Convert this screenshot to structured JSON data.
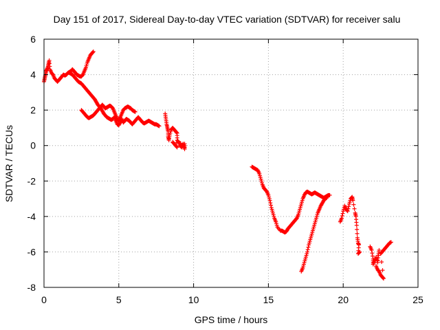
{
  "chart_data": {
    "type": "scatter",
    "title": "Day 151 of 2017, Sidereal Day-to-day VTEC variation (SDTVAR) for receiver salu",
    "xlabel": "GPS time / hours",
    "ylabel": "SDTVAR / TECUs",
    "xlim": [
      0,
      25
    ],
    "ylim": [
      -8,
      6
    ],
    "xticks": [
      0,
      5,
      10,
      15,
      20,
      25
    ],
    "yticks": [
      -8,
      -6,
      -4,
      -2,
      0,
      2,
      4,
      6
    ],
    "grid": true,
    "marker": "+",
    "color": "#ff0000",
    "series": [
      {
        "segments": [
          [
            [
              0.0,
              3.6
            ],
            [
              0.05,
              3.8
            ],
            [
              0.1,
              4.0
            ],
            [
              0.15,
              4.2
            ],
            [
              0.2,
              4.3
            ],
            [
              0.25,
              4.4
            ],
            [
              0.3,
              4.6
            ],
            [
              0.35,
              4.8
            ],
            [
              0.4,
              4.3
            ],
            [
              0.5,
              4.1
            ],
            [
              0.6,
              4.0
            ],
            [
              0.7,
              3.8
            ],
            [
              0.8,
              3.7
            ],
            [
              0.9,
              3.6
            ],
            [
              1.0,
              3.7
            ],
            [
              1.1,
              3.8
            ],
            [
              1.2,
              3.9
            ],
            [
              1.3,
              4.0
            ],
            [
              1.4,
              3.95
            ],
            [
              1.5,
              4.0
            ],
            [
              1.6,
              4.1
            ],
            [
              1.7,
              4.15
            ],
            [
              1.8,
              4.2
            ],
            [
              1.9,
              4.3
            ],
            [
              2.0,
              4.2
            ],
            [
              2.1,
              4.1
            ],
            [
              2.2,
              4.0
            ],
            [
              2.3,
              3.95
            ],
            [
              2.4,
              3.9
            ],
            [
              2.5,
              3.9
            ],
            [
              2.6,
              4.0
            ],
            [
              2.7,
              4.2
            ],
            [
              2.8,
              4.4
            ],
            [
              2.9,
              4.7
            ],
            [
              3.0,
              4.9
            ],
            [
              3.1,
              5.1
            ],
            [
              3.2,
              5.2
            ],
            [
              3.3,
              5.3
            ]
          ],
          [
            [
              1.7,
              4.1
            ],
            [
              1.8,
              4.05
            ],
            [
              1.9,
              4.0
            ],
            [
              2.0,
              3.9
            ],
            [
              2.1,
              3.8
            ],
            [
              2.2,
              3.7
            ],
            [
              2.3,
              3.6
            ],
            [
              2.4,
              3.55
            ],
            [
              2.5,
              3.5
            ],
            [
              2.6,
              3.4
            ],
            [
              2.7,
              3.3
            ],
            [
              2.8,
              3.2
            ],
            [
              2.9,
              3.1
            ],
            [
              3.0,
              3.0
            ],
            [
              3.1,
              2.9
            ],
            [
              3.2,
              2.8
            ],
            [
              3.3,
              2.7
            ],
            [
              3.4,
              2.6
            ],
            [
              3.5,
              2.45
            ],
            [
              3.6,
              2.3
            ],
            [
              3.7,
              2.2
            ],
            [
              3.8,
              2.1
            ],
            [
              3.9,
              1.95
            ],
            [
              4.0,
              1.8
            ],
            [
              4.1,
              1.7
            ],
            [
              4.2,
              1.6
            ],
            [
              4.3,
              1.55
            ],
            [
              4.4,
              1.5
            ],
            [
              4.5,
              1.45
            ],
            [
              4.6,
              1.5
            ],
            [
              4.7,
              1.6
            ],
            [
              4.8,
              1.4
            ],
            [
              4.9,
              1.2
            ],
            [
              5.0,
              1.15
            ],
            [
              5.1,
              1.3
            ],
            [
              5.2,
              1.5
            ],
            [
              5.3,
              1.3
            ],
            [
              5.4,
              1.4
            ],
            [
              5.5,
              1.5
            ],
            [
              5.6,
              1.45
            ],
            [
              5.7,
              1.4
            ],
            [
              5.8,
              1.3
            ],
            [
              5.9,
              1.2
            ],
            [
              6.0,
              1.3
            ],
            [
              6.1,
              1.4
            ],
            [
              6.2,
              1.5
            ],
            [
              6.3,
              1.6
            ],
            [
              6.4,
              1.5
            ],
            [
              6.5,
              1.4
            ],
            [
              6.6,
              1.3
            ],
            [
              6.7,
              1.25
            ],
            [
              6.8,
              1.3
            ],
            [
              6.9,
              1.35
            ],
            [
              7.0,
              1.4
            ],
            [
              7.1,
              1.35
            ],
            [
              7.2,
              1.3
            ],
            [
              7.3,
              1.25
            ],
            [
              7.4,
              1.2
            ],
            [
              7.5,
              1.2
            ],
            [
              7.6,
              1.15
            ],
            [
              7.7,
              1.1
            ]
          ],
          [
            [
              2.5,
              2.0
            ],
            [
              2.6,
              1.9
            ],
            [
              2.7,
              1.8
            ],
            [
              2.8,
              1.7
            ],
            [
              2.9,
              1.6
            ],
            [
              3.0,
              1.55
            ],
            [
              3.1,
              1.6
            ],
            [
              3.2,
              1.65
            ],
            [
              3.3,
              1.7
            ],
            [
              3.4,
              1.8
            ],
            [
              3.5,
              1.9
            ],
            [
              3.6,
              2.0
            ],
            [
              3.7,
              2.1
            ],
            [
              3.8,
              2.2
            ],
            [
              3.9,
              2.3
            ],
            [
              4.0,
              2.2
            ],
            [
              4.1,
              2.1
            ],
            [
              4.2,
              2.15
            ],
            [
              4.3,
              2.2
            ],
            [
              4.4,
              2.25
            ],
            [
              4.5,
              2.2
            ],
            [
              4.6,
              2.1
            ],
            [
              4.7,
              1.9
            ],
            [
              4.8,
              1.7
            ],
            [
              4.9,
              1.5
            ],
            [
              5.0,
              1.4
            ],
            [
              5.1,
              1.6
            ],
            [
              5.2,
              1.8
            ],
            [
              5.3,
              2.0
            ],
            [
              5.4,
              2.1
            ],
            [
              5.5,
              2.15
            ],
            [
              5.6,
              2.2
            ],
            [
              5.7,
              2.15
            ],
            [
              5.8,
              2.1
            ],
            [
              5.9,
              2.0
            ],
            [
              6.0,
              1.95
            ],
            [
              6.1,
              1.9
            ]
          ],
          [
            [
              8.1,
              1.8
            ],
            [
              8.15,
              1.5
            ],
            [
              8.2,
              1.2
            ],
            [
              8.25,
              1.0
            ],
            [
              8.3,
              0.8
            ],
            [
              8.3,
              0.5
            ],
            [
              8.35,
              0.3
            ],
            [
              8.4,
              0.6
            ],
            [
              8.5,
              0.9
            ],
            [
              8.6,
              1.0
            ],
            [
              8.7,
              0.9
            ],
            [
              8.8,
              0.8
            ],
            [
              8.9,
              0.7
            ],
            [
              8.9,
              0.3
            ],
            [
              9.0,
              0.2
            ],
            [
              9.1,
              0.0
            ],
            [
              9.2,
              -0.1
            ],
            [
              9.3,
              0.1
            ],
            [
              9.35,
              0.0
            ],
            [
              9.4,
              -0.2
            ],
            [
              9.4,
              0.1
            ],
            [
              8.6,
              0.2
            ],
            [
              8.7,
              0.1
            ],
            [
              8.8,
              0.0
            ],
            [
              8.9,
              -0.1
            ]
          ],
          [
            [
              13.9,
              -1.2
            ],
            [
              14.0,
              -1.25
            ],
            [
              14.1,
              -1.3
            ],
            [
              14.2,
              -1.35
            ],
            [
              14.3,
              -1.4
            ],
            [
              14.4,
              -1.6
            ],
            [
              14.5,
              -1.9
            ],
            [
              14.6,
              -2.2
            ],
            [
              14.7,
              -2.4
            ],
            [
              14.8,
              -2.5
            ],
            [
              14.9,
              -2.6
            ],
            [
              15.0,
              -2.8
            ],
            [
              15.1,
              -3.1
            ],
            [
              15.2,
              -3.5
            ],
            [
              15.3,
              -3.8
            ],
            [
              15.4,
              -4.1
            ],
            [
              15.5,
              -4.3
            ],
            [
              15.6,
              -4.6
            ],
            [
              15.8,
              -4.8
            ],
            [
              15.9,
              -4.8
            ],
            [
              16.0,
              -4.85
            ],
            [
              16.1,
              -4.9
            ],
            [
              16.2,
              -4.85
            ],
            [
              16.3,
              -4.7
            ],
            [
              16.4,
              -4.6
            ],
            [
              16.5,
              -4.5
            ],
            [
              16.6,
              -4.4
            ],
            [
              16.7,
              -4.3
            ],
            [
              16.8,
              -4.2
            ],
            [
              16.9,
              -4.1
            ],
            [
              17.0,
              -3.9
            ],
            [
              17.1,
              -3.6
            ],
            [
              17.2,
              -3.3
            ],
            [
              17.3,
              -3.0
            ],
            [
              17.4,
              -2.8
            ],
            [
              17.5,
              -2.65
            ],
            [
              17.6,
              -2.6
            ],
            [
              17.7,
              -2.65
            ],
            [
              17.8,
              -2.7
            ],
            [
              17.9,
              -2.75
            ],
            [
              18.0,
              -2.7
            ],
            [
              18.1,
              -2.65
            ],
            [
              18.2,
              -2.7
            ],
            [
              18.3,
              -2.75
            ],
            [
              18.4,
              -2.8
            ],
            [
              18.5,
              -2.85
            ],
            [
              18.6,
              -2.9
            ],
            [
              18.7,
              -2.95
            ],
            [
              18.8,
              -2.9
            ],
            [
              18.9,
              -2.85
            ],
            [
              19.0,
              -2.8
            ],
            [
              19.1,
              -2.8
            ]
          ],
          [
            [
              17.2,
              -7.1
            ],
            [
              17.3,
              -6.9
            ],
            [
              17.4,
              -6.6
            ],
            [
              17.5,
              -6.3
            ],
            [
              17.6,
              -6.0
            ],
            [
              17.7,
              -5.6
            ],
            [
              17.8,
              -5.3
            ],
            [
              17.9,
              -5.0
            ],
            [
              18.0,
              -4.7
            ],
            [
              18.1,
              -4.4
            ],
            [
              18.2,
              -4.1
            ],
            [
              18.3,
              -3.8
            ],
            [
              18.4,
              -3.6
            ],
            [
              18.5,
              -3.4
            ],
            [
              18.6,
              -3.25
            ],
            [
              18.7,
              -3.1
            ],
            [
              18.8,
              -3.0
            ],
            [
              18.9,
              -2.95
            ]
          ],
          [
            [
              19.8,
              -4.3
            ],
            [
              19.9,
              -4.1
            ],
            [
              20.0,
              -3.7
            ],
            [
              20.1,
              -3.4
            ],
            [
              20.2,
              -3.6
            ],
            [
              20.3,
              -3.7
            ],
            [
              20.4,
              -3.3
            ],
            [
              20.5,
              -3.0
            ],
            [
              20.6,
              -2.9
            ],
            [
              20.65,
              -3.1
            ],
            [
              20.8,
              -3.8
            ],
            [
              20.85,
              -4.0
            ],
            [
              20.9,
              -4.5
            ],
            [
              20.95,
              -5.2
            ],
            [
              21.0,
              -5.5
            ],
            [
              21.05,
              -5.6
            ],
            [
              21.0,
              -6.1
            ],
            [
              21.1,
              -6.0
            ]
          ],
          [
            [
              21.8,
              -5.7
            ],
            [
              21.9,
              -5.9
            ],
            [
              22.0,
              -6.4
            ],
            [
              22.0,
              -6.7
            ],
            [
              22.1,
              -6.5
            ],
            [
              22.2,
              -6.3
            ],
            [
              22.3,
              -6.6
            ],
            [
              22.35,
              -6.2
            ],
            [
              22.4,
              -5.9
            ],
            [
              22.2,
              -6.8
            ],
            [
              22.3,
              -7.0
            ],
            [
              22.4,
              -7.1
            ],
            [
              22.5,
              -7.3
            ],
            [
              22.6,
              -7.4
            ],
            [
              22.7,
              -7.5
            ],
            [
              22.5,
              -6.1
            ],
            [
              22.6,
              -6.0
            ],
            [
              22.7,
              -5.9
            ],
            [
              22.8,
              -5.8
            ],
            [
              22.9,
              -5.7
            ],
            [
              23.0,
              -5.6
            ],
            [
              23.1,
              -5.5
            ],
            [
              23.2,
              -5.45
            ]
          ]
        ]
      }
    ]
  }
}
